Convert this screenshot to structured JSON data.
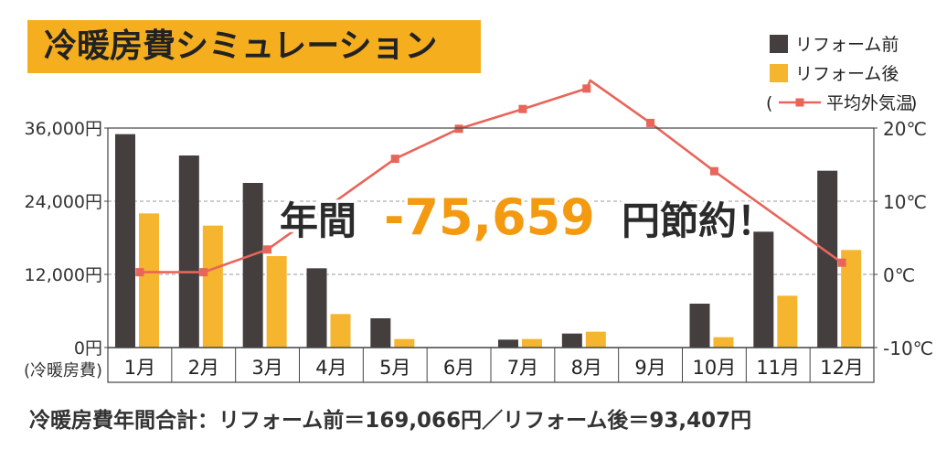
{
  "title": "冷暖房費シミュレーション",
  "footer": "冷暖房費年間合計：リフォーム前＝169,066円／リフォーム後＝93,407円",
  "headline": {
    "prefix": "年間",
    "amount": "-75,659",
    "suffix": "円節約！"
  },
  "colors": {
    "before": "#443e3f",
    "after": "#f5b52e",
    "temperature": "#e8655a",
    "title_bg": "#f5ae1e",
    "headline_amount": "#f39a11"
  },
  "chart_data": {
    "type": "bar",
    "categories": [
      "1月",
      "2月",
      "3月",
      "4月",
      "5月",
      "6月",
      "7月",
      "8月",
      "9月",
      "10月",
      "11月",
      "12月"
    ],
    "series": [
      {
        "name": "リフォーム前",
        "axis": "left",
        "values": [
          35000,
          31500,
          27000,
          13000,
          4800,
          0,
          1300,
          2300,
          0,
          7200,
          19000,
          29000
        ]
      },
      {
        "name": "リフォーム後",
        "axis": "left",
        "values": [
          22000,
          20000,
          15000,
          5500,
          1400,
          0,
          1400,
          2600,
          0,
          1700,
          8500,
          16000
        ]
      },
      {
        "name": "平均外気温",
        "type": "line",
        "axis": "right",
        "values": [
          0.3,
          0.3,
          3.4,
          null,
          15.8,
          19.9,
          22.6,
          25.4,
          20.7,
          14.1,
          null,
          1.6
        ]
      }
    ],
    "temperature_peak": 26.5,
    "y_left": {
      "ticks": [
        "36,000円",
        "24,000円",
        "12,000円",
        "0円"
      ],
      "lim": [
        0,
        36000
      ],
      "unit_label": "(冷暖房費)"
    },
    "y_right": {
      "ticks": [
        "20℃",
        "10℃",
        "0℃",
        "-10℃"
      ],
      "lim": [
        -10,
        20
      ]
    },
    "legend": {
      "position": "top-right",
      "line_prefix": "(",
      "line_suffix": ")"
    },
    "grid": "horizontal dashed"
  }
}
